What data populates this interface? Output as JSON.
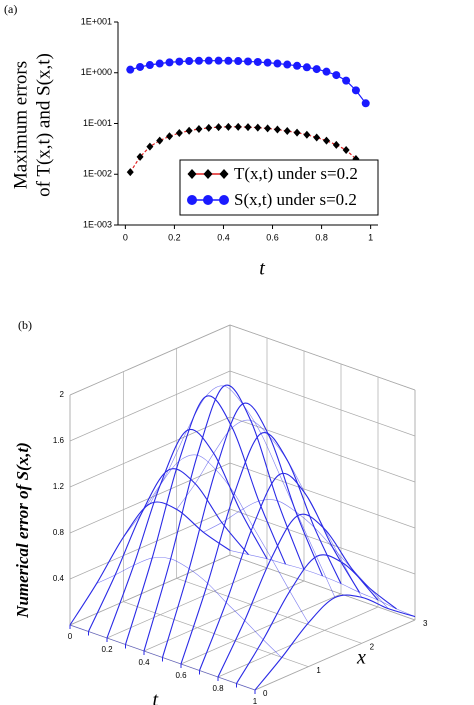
{
  "chart_data": [
    {
      "type": "line",
      "panel_label": "(a)",
      "xlabel": "t",
      "ylabel": [
        "Maximum errors",
        "of T(x,t) and S(x,t)"
      ],
      "x": [
        0.02,
        0.06,
        0.1,
        0.14,
        0.18,
        0.22,
        0.26,
        0.3,
        0.34,
        0.38,
        0.42,
        0.46,
        0.5,
        0.54,
        0.58,
        0.62,
        0.66,
        0.7,
        0.74,
        0.78,
        0.82,
        0.86,
        0.9,
        0.94,
        0.98
      ],
      "series": [
        {
          "name": "T(x,t) under s=0.2",
          "color": "#000000",
          "line_color": "#e02020",
          "marker": "diamond",
          "values": [
            0.011,
            0.022,
            0.035,
            0.046,
            0.056,
            0.065,
            0.072,
            0.078,
            0.082,
            0.085,
            0.086,
            0.086,
            0.085,
            0.083,
            0.08,
            0.076,
            0.071,
            0.066,
            0.06,
            0.053,
            0.046,
            0.038,
            0.03,
            0.02,
            0.005
          ]
        },
        {
          "name": "S(x,t) under s=0.2",
          "color": "#1a1aff",
          "line_color": "#1a1aff",
          "marker": "circle",
          "values": [
            1.15,
            1.3,
            1.42,
            1.52,
            1.6,
            1.66,
            1.7,
            1.72,
            1.73,
            1.73,
            1.72,
            1.7,
            1.67,
            1.63,
            1.58,
            1.52,
            1.45,
            1.37,
            1.28,
            1.18,
            1.05,
            0.9,
            0.7,
            0.45,
            0.25
          ]
        }
      ],
      "xlim": [
        -0.03,
        1.03
      ],
      "xticks": [
        0,
        0.2,
        0.4,
        0.6,
        0.8,
        1
      ],
      "log_y": true,
      "ylim": [
        0.001,
        10
      ],
      "yticks": [
        {
          "value": 0.001,
          "label": "1E-003"
        },
        {
          "value": 0.01,
          "label": "1E-002"
        },
        {
          "value": 0.1,
          "label": "1E-001"
        },
        {
          "value": 1,
          "label": "1E+000"
        },
        {
          "value": 10,
          "label": "1E+001"
        }
      ],
      "legend": "lower right"
    },
    {
      "type": "surface",
      "panel_label": "(b)",
      "zlabel": "Numerical error of S(x,t)",
      "xlabel": "x",
      "tlabel": "t",
      "t": [
        0,
        0.1,
        0.2,
        0.3,
        0.4,
        0.5,
        0.6,
        0.7,
        0.8,
        0.9,
        1
      ],
      "x": [
        0,
        0.5,
        1,
        1.5,
        2,
        2.5,
        3
      ],
      "z": [
        [
          0,
          0.26,
          0.56,
          0.75,
          0.6,
          0.3,
          0.04
        ],
        [
          0,
          0.39,
          0.83,
          1.1,
          0.88,
          0.44,
          0.06
        ],
        [
          0,
          0.53,
          1.13,
          1.5,
          1.2,
          0.6,
          0.08
        ],
        [
          0,
          0.65,
          1.39,
          1.85,
          1.48,
          0.74,
          0.09
        ],
        [
          0,
          0.7,
          1.5,
          2.0,
          1.6,
          0.8,
          0.1
        ],
        [
          0,
          0.67,
          1.43,
          1.9,
          1.52,
          0.76,
          0.1
        ],
        [
          0,
          0.6,
          1.28,
          1.7,
          1.36,
          0.68,
          0.09
        ],
        [
          0,
          0.49,
          1.05,
          1.4,
          1.12,
          0.56,
          0.07
        ],
        [
          0,
          0.39,
          0.83,
          1.1,
          0.88,
          0.44,
          0.06
        ],
        [
          0,
          0.28,
          0.6,
          0.8,
          0.64,
          0.32,
          0.04
        ],
        [
          0,
          0.18,
          0.38,
          0.5,
          0.4,
          0.2,
          0.03
        ]
      ],
      "color": "#2a2ae6",
      "tlim": [
        0,
        1
      ],
      "tticks": [
        0,
        0.2,
        0.4,
        0.6,
        0.8,
        1
      ],
      "xlim": [
        0,
        3
      ],
      "xticks": [
        0,
        1,
        2,
        3
      ],
      "zlim": [
        0,
        2
      ],
      "zticks": [
        0.4,
        0.8,
        1.2,
        1.6,
        2
      ]
    }
  ]
}
